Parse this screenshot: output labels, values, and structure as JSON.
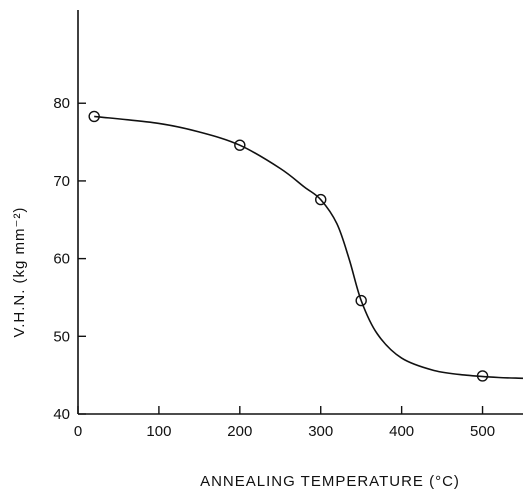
{
  "chart_data": {
    "type": "scatter",
    "xlabel": "ANNEALING TEMPERATURE (°C)",
    "ylabel": "V.H.N. (kg mm⁻²)",
    "xlim": [
      0,
      550
    ],
    "ylim": [
      40,
      92
    ],
    "xticks": [
      0,
      100,
      200,
      300,
      400,
      500
    ],
    "yticks": [
      40,
      50,
      60,
      70,
      80
    ],
    "grid": false,
    "points": {
      "x": [
        20,
        200,
        300,
        350,
        500
      ],
      "y": [
        78.3,
        74.6,
        67.6,
        54.6,
        44.9
      ]
    },
    "fit_curve": {
      "x": [
        20,
        100,
        150,
        200,
        250,
        280,
        300,
        320,
        335,
        350,
        370,
        400,
        440,
        480,
        520,
        550
      ],
      "y": [
        78.3,
        77.4,
        76.3,
        74.6,
        71.6,
        69.2,
        67.6,
        64.5,
        60.0,
        54.6,
        50.3,
        47.2,
        45.6,
        45.0,
        44.7,
        44.6
      ]
    }
  }
}
